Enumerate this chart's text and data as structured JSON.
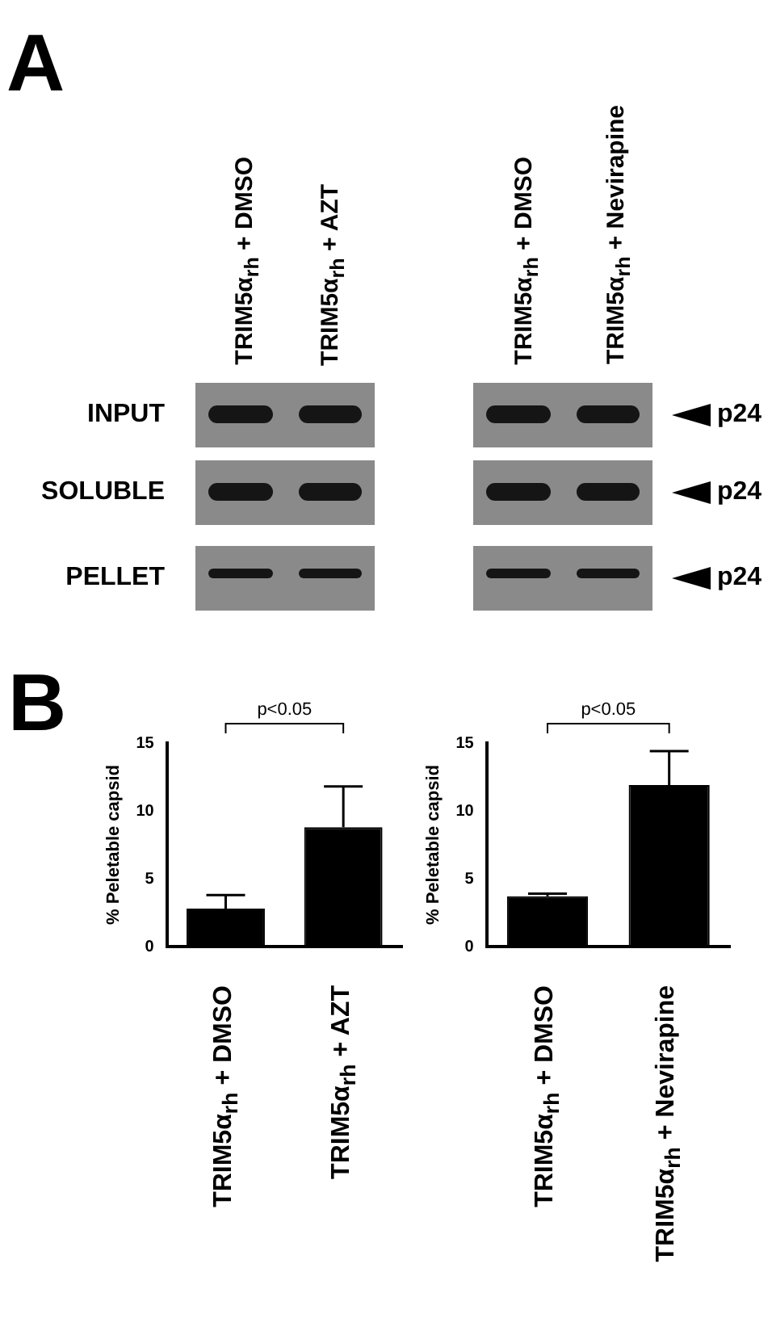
{
  "chart_data": [
    {
      "type": "other",
      "annotations": [
        "A",
        "TRIM5α$_{rh}$ + DMSO",
        "TRIM5α$_{rh}$ + AZT",
        "TRIM5α$_{rh}$ + DMSO",
        "TRIM5α$_{rh}$ + Nevirapine",
        "INPUT",
        "SOLUBLE",
        "PELLET",
        "p24",
        "p24",
        "p24"
      ]
    },
    {
      "type": "bar",
      "title": "B",
      "ylabel": "% Peletable capsid",
      "categories": [
        "TRIM5α$_{rh}$ + DMSO",
        "TRIM5α$_{rh}$ + AZT"
      ],
      "values": [
        2.8,
        8.8
      ],
      "errors": [
        1.0,
        3.0
      ],
      "color": "#000000",
      "ylim": [
        0,
        15
      ],
      "yticks": [
        0,
        5,
        10,
        15
      ],
      "grid": false,
      "legend": false,
      "annotations": [
        "p<0.05"
      ]
    },
    {
      "type": "bar",
      "ylabel": "% Peletable capsid",
      "categories": [
        "TRIM5α$_{rh}$ + DMSO",
        "TRIM5α$_{rh}$ + Nevirapine"
      ],
      "values": [
        3.7,
        11.9
      ],
      "errors": [
        0.2,
        2.5
      ],
      "color": "#000000",
      "ylim": [
        0,
        15
      ],
      "yticks": [
        0,
        5,
        10,
        15
      ],
      "grid": false,
      "legend": false,
      "annotations": [
        "p<0.05"
      ]
    }
  ]
}
